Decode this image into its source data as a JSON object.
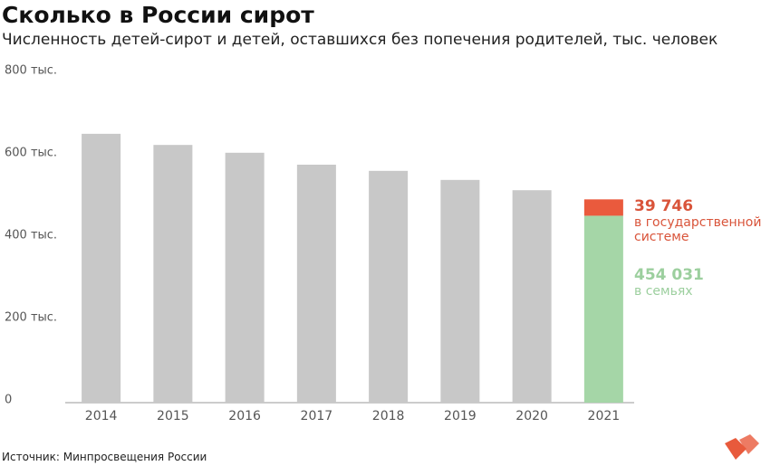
{
  "chart_data": {
    "type": "stacked-bar",
    "title": "Сколько в России сирот",
    "subtitle": "Численность детей-сирот и детей, оставшихся без попечения родителей, тыс. человек",
    "source": "Источник: Минпросвещения России",
    "categories": [
      "2014",
      "2015",
      "2016",
      "2017",
      "2018",
      "2019",
      "2020",
      "2021"
    ],
    "series": [
      {
        "color": "#c8c8c8",
        "values": [
          653,
          626,
          607,
          578,
          563,
          541,
          516,
          null
        ]
      },
      {
        "name": "в семьях",
        "color": "#a5d6a7",
        "label_color": "#9ccf9e",
        "values": [
          null,
          null,
          null,
          null,
          null,
          null,
          null,
          454.031
        ],
        "value_labels": [
          null,
          null,
          null,
          null,
          null,
          null,
          null,
          "454 031"
        ]
      },
      {
        "name": "в государственной системе",
        "color": "#ea5a3d",
        "label_color": "#d9543a",
        "values": [
          null,
          null,
          null,
          null,
          null,
          null,
          null,
          39.746
        ],
        "value_labels": [
          null,
          null,
          null,
          null,
          null,
          null,
          null,
          "39 746"
        ]
      }
    ],
    "ylim": [
      0,
      800
    ],
    "yticks": [
      0,
      {
        "value": 200,
        "label": "200 тыс."
      },
      {
        "value": 400,
        "label": "400 тыс."
      },
      {
        "value": 600,
        "label": "600 тыс."
      },
      {
        "value": 800,
        "label": "800 тыс."
      }
    ],
    "grid": false
  }
}
